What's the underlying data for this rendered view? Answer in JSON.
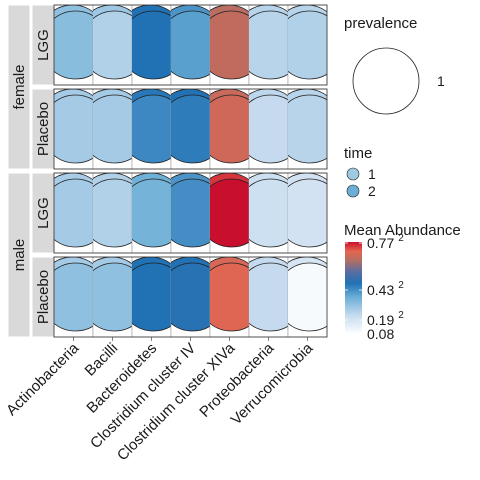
{
  "chart_data": {
    "type": "heatmap",
    "title": "",
    "xlabel": "",
    "ylabel": "",
    "categories": [
      "Actinobacteria",
      "Bacilli",
      "Bacteroidetes",
      "Clostridium cluster IV",
      "Clostridium cluster XIVa",
      "Proteobacteria",
      "Verrucomicrobia"
    ],
    "facets": [
      {
        "sex": "female",
        "treatment": "LGG"
      },
      {
        "sex": "female",
        "treatment": "Placebo"
      },
      {
        "sex": "male",
        "treatment": "LGG"
      },
      {
        "sex": "male",
        "treatment": "Placebo"
      }
    ],
    "series": [
      {
        "name": "1",
        "values": [
          [
            0.3,
            0.28,
            0.46,
            0.4,
            0.64,
            0.24,
            0.24
          ],
          [
            0.27,
            0.27,
            0.45,
            0.46,
            0.66,
            0.23,
            0.24
          ],
          [
            0.26,
            0.25,
            0.35,
            0.4,
            0.74,
            0.2,
            0.19
          ],
          [
            0.27,
            0.27,
            0.46,
            0.46,
            0.68,
            0.22,
            0.18
          ]
        ]
      },
      {
        "name": "2",
        "values": [
          [
            0.31,
            0.25,
            0.46,
            0.38,
            0.65,
            0.24,
            0.25
          ],
          [
            0.27,
            0.27,
            0.42,
            0.44,
            0.67,
            0.22,
            0.24
          ],
          [
            0.27,
            0.25,
            0.34,
            0.41,
            0.77,
            0.2,
            0.19
          ],
          [
            0.3,
            0.3,
            0.46,
            0.47,
            0.69,
            0.22,
            0.1
          ]
        ]
      }
    ],
    "legend": {
      "prevalence_title": "prevalence",
      "prevalence_value": "1",
      "time_title": "time",
      "time_levels": [
        "1",
        "2"
      ],
      "time_colors": [
        "#9ecae1",
        "#6baed6"
      ],
      "abundance_title": "Mean Abundance",
      "abundance_ticks": [
        "0.77",
        "0.43",
        "0.19",
        "0.08"
      ],
      "abundance_tick_values": [
        0.77,
        0.43,
        0.19,
        0.08
      ],
      "abundance_exponent": "2",
      "color_low": "#ffffff",
      "color_mid": "#2166ac",
      "color_high": "#c8102e",
      "range": [
        0.08,
        0.77
      ]
    },
    "legend_position": "right",
    "colors": {
      "strip_bg": "#d9d9d9",
      "panel_border": "#333333",
      "circle_stroke": "#222222"
    }
  }
}
